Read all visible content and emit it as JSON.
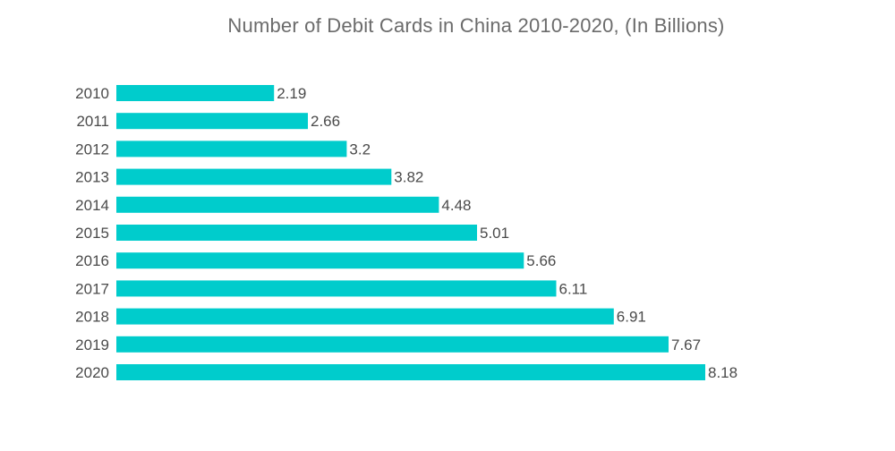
{
  "chart_data": {
    "type": "bar",
    "orientation": "horizontal",
    "title": "Number of Debit Cards in China 2010-2020, (In Billions)",
    "categories": [
      "2010",
      "2011",
      "2012",
      "2013",
      "2014",
      "2015",
      "2016",
      "2017",
      "2018",
      "2019",
      "2020"
    ],
    "values": [
      2.19,
      2.66,
      3.2,
      3.82,
      4.48,
      5.01,
      5.66,
      6.11,
      6.91,
      7.67,
      8.18
    ],
    "value_labels": [
      "2.19",
      "2.66",
      "3.2",
      "3.82",
      "4.48",
      "5.01",
      "5.66",
      "6.11",
      "6.91",
      "7.67",
      "8.18"
    ],
    "xlim": [
      0,
      8.18
    ],
    "grid": false,
    "legend": "none",
    "bar_color": "#00cccc"
  }
}
